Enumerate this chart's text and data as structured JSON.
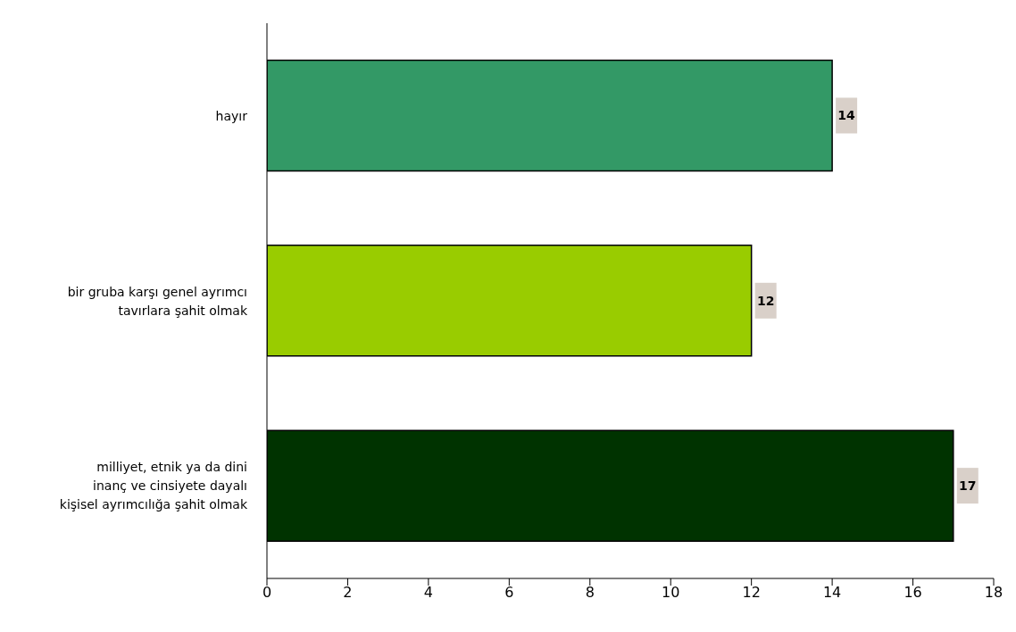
{
  "chart_data": {
    "type": "bar",
    "orientation": "horizontal",
    "categories": [
      "hayır",
      "bir gruba karşı genel ayrımcı tavırlara şahit olmak",
      "milliyet, etnik ya da dini inanç ve cinsiyete dayalı kişisel ayrımcılığa şahit olmak"
    ],
    "values": [
      14,
      12,
      17
    ],
    "colors": [
      "#339966",
      "#99cc00",
      "#003300"
    ],
    "xlim": [
      0,
      18
    ],
    "xticks": [
      0,
      2,
      4,
      6,
      8,
      10,
      12,
      14,
      16,
      18
    ],
    "data_labels": true,
    "grid": false
  }
}
